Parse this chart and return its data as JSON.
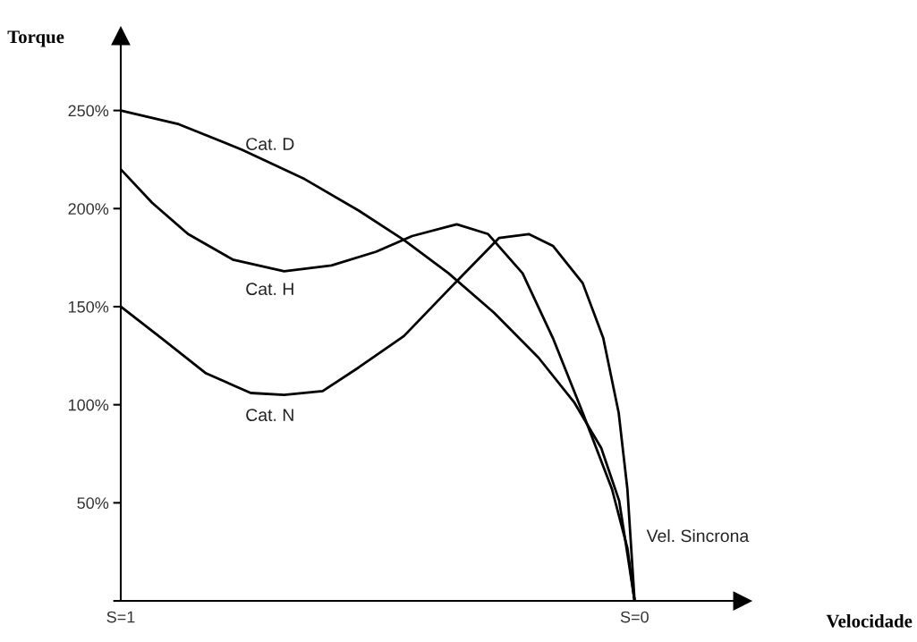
{
  "chart_data": {
    "type": "line",
    "xlabel": "Velocidade",
    "ylabel": "Torque",
    "xlim": [
      1,
      -0.21
    ],
    "ylim": [
      0,
      288
    ],
    "xticks": [
      {
        "value": 1,
        "label": "S=1"
      },
      {
        "value": 0,
        "label": "S=0"
      }
    ],
    "yticks": [
      {
        "value": 0,
        "label": null
      },
      {
        "value": 50,
        "label": "50%"
      },
      {
        "value": 100,
        "label": "100%"
      },
      {
        "value": 150,
        "label": "150%"
      },
      {
        "value": 200,
        "label": "200%"
      },
      {
        "value": 250,
        "label": "250%"
      }
    ],
    "grid": false,
    "legend": false,
    "marker": "none",
    "line_style": "solid",
    "series": [
      {
        "name": "Cat. D",
        "color": "#000000",
        "x": [
          1,
          0.887,
          0.764,
          0.642,
          0.537,
          0.449,
          0.362,
          0.274,
          0.187,
          0.117,
          0.065,
          0.03,
          0.014,
          0
        ],
        "values": [
          250,
          243,
          230,
          215,
          199,
          184,
          167,
          147,
          124,
          101,
          78,
          51,
          24,
          0
        ]
      },
      {
        "name": "Cat. H",
        "color": "#000000",
        "x": [
          1,
          0.939,
          0.869,
          0.782,
          0.682,
          0.59,
          0.503,
          0.433,
          0.346,
          0.285,
          0.218,
          0.159,
          0.101,
          0.044,
          0.014,
          0
        ],
        "values": [
          220,
          203,
          187,
          174,
          168,
          171,
          178,
          186,
          192,
          187,
          167,
          134,
          96,
          57,
          27,
          0
        ]
      },
      {
        "name": "Cat. N",
        "color": "#000000",
        "x": [
          1,
          0.921,
          0.834,
          0.747,
          0.682,
          0.607,
          0.537,
          0.449,
          0.346,
          0.264,
          0.206,
          0.159,
          0.101,
          0.061,
          0.031,
          0.014,
          0
        ],
        "values": [
          150,
          134,
          116,
          106,
          105,
          107,
          119,
          135,
          163,
          185,
          187,
          181,
          162,
          134,
          96,
          57,
          0
        ]
      }
    ],
    "annotations": [
      "Vel. Sincrona"
    ]
  }
}
